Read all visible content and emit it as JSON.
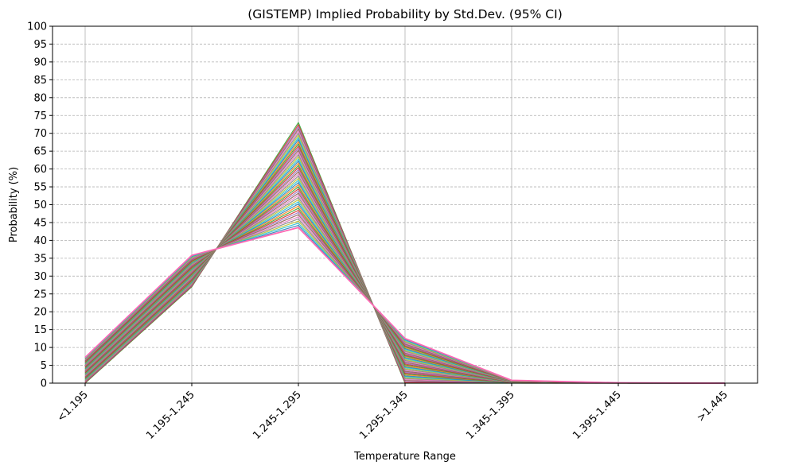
{
  "chart_data": {
    "type": "line",
    "title": "(GISTEMP) Implied Probability by Std.Dev. (95% CI)",
    "xlabel": "Temperature Range",
    "ylabel": "Probability (%)",
    "categories": [
      "<1.195",
      "1.195-1.245",
      "1.245-1.295",
      "1.295-1.345",
      "1.345-1.395",
      "1.395-1.445",
      ">1.445"
    ],
    "ylim": [
      0,
      100
    ],
    "yticks": [
      0,
      5,
      10,
      15,
      20,
      25,
      30,
      35,
      40,
      45,
      50,
      55,
      60,
      65,
      70,
      75,
      80,
      85,
      90,
      95,
      100
    ],
    "grid": true,
    "legend": "none",
    "series_count": 50,
    "series_colors": [
      "#2ca02c",
      "#d62728",
      "#9467bd",
      "#8c564b",
      "#e377c2",
      "#7f7f7f",
      "#bcbd22",
      "#17becf",
      "#1f77b4",
      "#ff7f0e"
    ],
    "series": [
      {
        "values": [
          0.0,
          27.0,
          73.0,
          0.0,
          0.0,
          0.0,
          0.0
        ]
      },
      {
        "values": [
          7.2,
          35.8,
          43.6,
          12.5,
          0.8,
          0.1,
          0.0
        ]
      }
    ]
  }
}
